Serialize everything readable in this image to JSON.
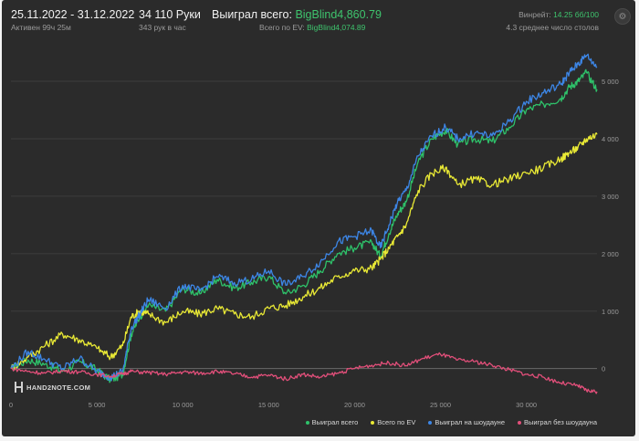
{
  "header": {
    "date_range": "25.11.2022 - 31.12.2022",
    "active": "Активен 99ч 25м",
    "hands": "34 110 Руки",
    "hands_per_hour": "343 рук в час",
    "won_label": "Выиграл всего:",
    "won_value": "BigBlind4,860.79",
    "ev_label": "Всего по EV:",
    "ev_value": "BigBlind4,074.89",
    "winrate_label": "Винрейт:",
    "winrate_value": "14.25 бб/100",
    "avg_tables": "4.3 среднее число столов"
  },
  "logo": "HAND2NOTE.COM",
  "colors": {
    "panel": "#2b2b2b",
    "won": "#2ec26a",
    "ev": "#e9e935",
    "showdown": "#3d86e6",
    "nonshowdown": "#e24f7a"
  },
  "chart_data": {
    "type": "line",
    "xlim": [
      0,
      34110
    ],
    "ylim": [
      -450,
      5700
    ],
    "x_ticks": [
      "0",
      "5 000",
      "10 000",
      "15 000",
      "20 000",
      "25 000",
      "30 000"
    ],
    "y_ticks": [
      "0",
      "1 000",
      "2 000",
      "3 000",
      "4 000",
      "5 000"
    ],
    "x_tick_values": [
      0,
      5000,
      10000,
      15000,
      20000,
      25000,
      30000
    ],
    "y_tick_values": [
      0,
      1000,
      2000,
      3000,
      4000,
      5000
    ],
    "series": [
      {
        "name": "Выиграл всего",
        "color": "#2ec26a",
        "x": [
          0,
          1000,
          2000,
          3000,
          4000,
          5000,
          5800,
          6500,
          7000,
          7500,
          8000,
          9000,
          10000,
          11000,
          12000,
          13000,
          14000,
          15000,
          16000,
          17000,
          18000,
          19000,
          20000,
          21000,
          21500,
          22000,
          22500,
          23000,
          23700,
          24500,
          25300,
          26000,
          27000,
          28000,
          29000,
          30000,
          31000,
          32000,
          32500,
          33000,
          33500,
          34110
        ],
        "y": [
          0,
          150,
          80,
          -50,
          120,
          -20,
          -200,
          -100,
          600,
          900,
          1100,
          1000,
          1400,
          1300,
          1550,
          1400,
          1500,
          1600,
          1300,
          1450,
          1700,
          2000,
          2100,
          2200,
          1950,
          2350,
          2700,
          2900,
          3600,
          4000,
          4150,
          3900,
          4000,
          3950,
          4200,
          4500,
          4600,
          4700,
          4900,
          5000,
          5150,
          4860
        ]
      },
      {
        "name": "Всего по EV",
        "color": "#e9e935",
        "x": [
          0,
          1000,
          2000,
          3000,
          4000,
          5000,
          5800,
          6500,
          7000,
          7500,
          8000,
          9000,
          10000,
          11000,
          12000,
          13000,
          14000,
          15000,
          16000,
          17000,
          18000,
          19000,
          20000,
          21000,
          21500,
          22000,
          22500,
          23000,
          23700,
          24500,
          25300,
          26000,
          27000,
          28000,
          29000,
          30000,
          31000,
          32000,
          32500,
          33000,
          33500,
          34110
        ],
        "y": [
          0,
          200,
          400,
          600,
          500,
          350,
          200,
          400,
          900,
          1000,
          950,
          800,
          1000,
          950,
          1050,
          950,
          900,
          1050,
          1100,
          1250,
          1400,
          1600,
          1700,
          1750,
          1900,
          2100,
          2300,
          2500,
          3100,
          3400,
          3500,
          3200,
          3300,
          3200,
          3300,
          3400,
          3500,
          3650,
          3750,
          3850,
          4000,
          4075
        ]
      },
      {
        "name": "Выиграл на шоудауне",
        "color": "#3d86e6",
        "x": [
          0,
          1000,
          2000,
          3000,
          4000,
          5000,
          5800,
          6500,
          7000,
          7500,
          8000,
          9000,
          10000,
          11000,
          12000,
          13000,
          14000,
          15000,
          16000,
          17000,
          18000,
          19000,
          20000,
          21000,
          21500,
          22000,
          22500,
          23000,
          23700,
          24500,
          25300,
          26000,
          27000,
          28000,
          29000,
          30000,
          31000,
          32000,
          32500,
          33000,
          33500,
          34110
        ],
        "y": [
          0,
          300,
          150,
          0,
          180,
          -50,
          -150,
          -50,
          700,
          950,
          1200,
          1050,
          1450,
          1350,
          1600,
          1500,
          1550,
          1700,
          1450,
          1600,
          1850,
          2200,
          2300,
          2400,
          2100,
          2500,
          2900,
          3100,
          3700,
          4050,
          4200,
          4000,
          4100,
          4050,
          4300,
          4650,
          4800,
          4950,
          5150,
          5300,
          5450,
          5250
        ]
      },
      {
        "name": "Выиграл без шоудауна",
        "color": "#e24f7a",
        "x": [
          0,
          1000,
          2000,
          3000,
          4000,
          5000,
          5800,
          6500,
          7000,
          8000,
          9000,
          10000,
          11000,
          12000,
          13000,
          14000,
          15000,
          16000,
          17000,
          18000,
          19000,
          20000,
          21000,
          22000,
          23000,
          24000,
          25000,
          26000,
          27000,
          28000,
          29000,
          30000,
          31000,
          32000,
          33000,
          33500,
          34110
        ],
        "y": [
          0,
          -50,
          -80,
          -40,
          -60,
          -100,
          -130,
          -90,
          -50,
          -70,
          -100,
          -60,
          -80,
          -50,
          -90,
          -150,
          -110,
          -180,
          -100,
          -150,
          -80,
          0,
          60,
          100,
          50,
          180,
          250,
          150,
          120,
          60,
          -20,
          -100,
          -150,
          -250,
          -300,
          -380,
          -400
        ]
      }
    ]
  },
  "legend": [
    {
      "label": "Выиграл всего",
      "color": "#2ec26a"
    },
    {
      "label": "Всего по EV",
      "color": "#e9e935"
    },
    {
      "label": "Выиграл на шоудауне",
      "color": "#3d86e6"
    },
    {
      "label": "Выиграл без шоудауна",
      "color": "#e24f7a"
    }
  ]
}
